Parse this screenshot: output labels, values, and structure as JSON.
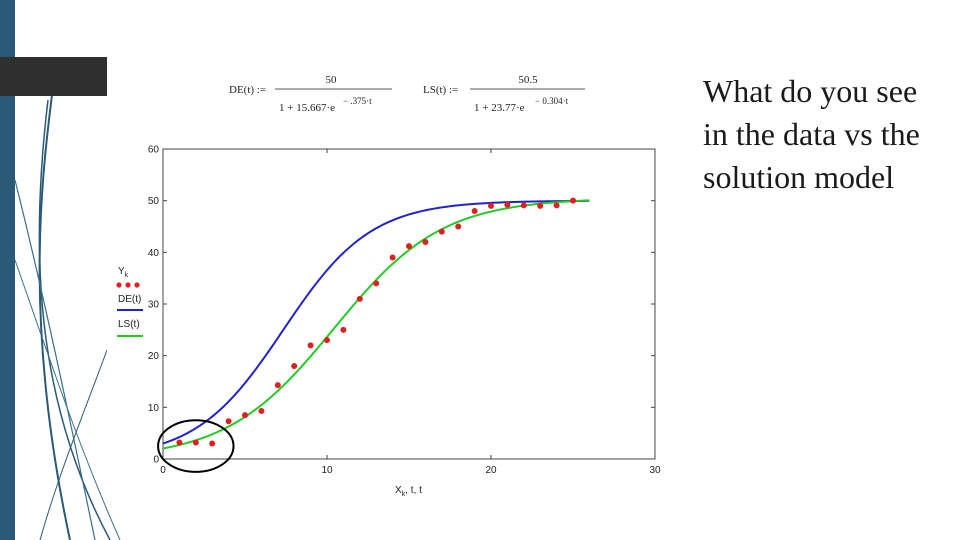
{
  "slide": {
    "text": "What do you see in the data vs the solution model",
    "theme_color": "#2a5a78",
    "dark_block_color": "#2f2f2f"
  },
  "equations": {
    "de": {
      "name": "DE(t) :=",
      "numerator": "50",
      "denominator": "1 + 15.667·e",
      "exponent": "− .375·t"
    },
    "ls": {
      "name": "LS(t) :=",
      "numerator": "50.5",
      "denominator": "1 + 23.77·e",
      "exponent": "− 0.304·t"
    }
  },
  "chart_data": {
    "type": "scatter",
    "xlabel": "X",
    "xlabel_sub": "k",
    "xlabel_rest": ", t, t",
    "xlim": [
      0,
      30
    ],
    "ylim": [
      0,
      60
    ],
    "xticks": [
      0,
      10,
      20,
      30
    ],
    "yticks": [
      0,
      10,
      20,
      30,
      40,
      50,
      60
    ],
    "grid": false,
    "legend": {
      "placement": "left",
      "entries": [
        {
          "label": "Y",
          "sub": "k",
          "style": "dots",
          "color": "#e02020"
        },
        {
          "label": "DE(t)",
          "style": "line",
          "color": "#2222cc"
        },
        {
          "label": "LS(t)",
          "style": "line",
          "color": "#22cc22"
        }
      ]
    },
    "series": [
      {
        "name": "Y",
        "style": "dots",
        "color": "#e02020",
        "x": [
          1,
          2,
          3,
          4,
          5,
          6,
          7,
          8,
          9,
          10,
          11,
          12,
          13,
          14,
          15,
          16,
          17,
          18,
          19,
          20,
          21,
          22,
          23,
          24,
          25
        ],
        "y": [
          3.2,
          3.2,
          3.0,
          7.3,
          8.5,
          9.3,
          14.3,
          18.0,
          22.0,
          23.0,
          25.0,
          31.0,
          34.0,
          39.0,
          41.2,
          42.0,
          44.0,
          45.0,
          48.0,
          49.0,
          49.2,
          49.1,
          49.0,
          49.1,
          50.0
        ]
      },
      {
        "name": "DE(t)",
        "style": "line",
        "color": "#2222cc",
        "function": {
          "L": 50,
          "A": 15.667,
          "k": 0.375
        },
        "t_range": [
          0,
          26
        ]
      },
      {
        "name": "LS(t)",
        "style": "line",
        "color": "#22cc22",
        "function": {
          "L": 50.5,
          "A": 23.77,
          "k": 0.304
        },
        "t_range": [
          0,
          26
        ]
      }
    ],
    "annotation": {
      "shape": "ellipse",
      "color": "#000000",
      "center": [
        2,
        2.5
      ],
      "radius": [
        2.3,
        5
      ]
    }
  }
}
